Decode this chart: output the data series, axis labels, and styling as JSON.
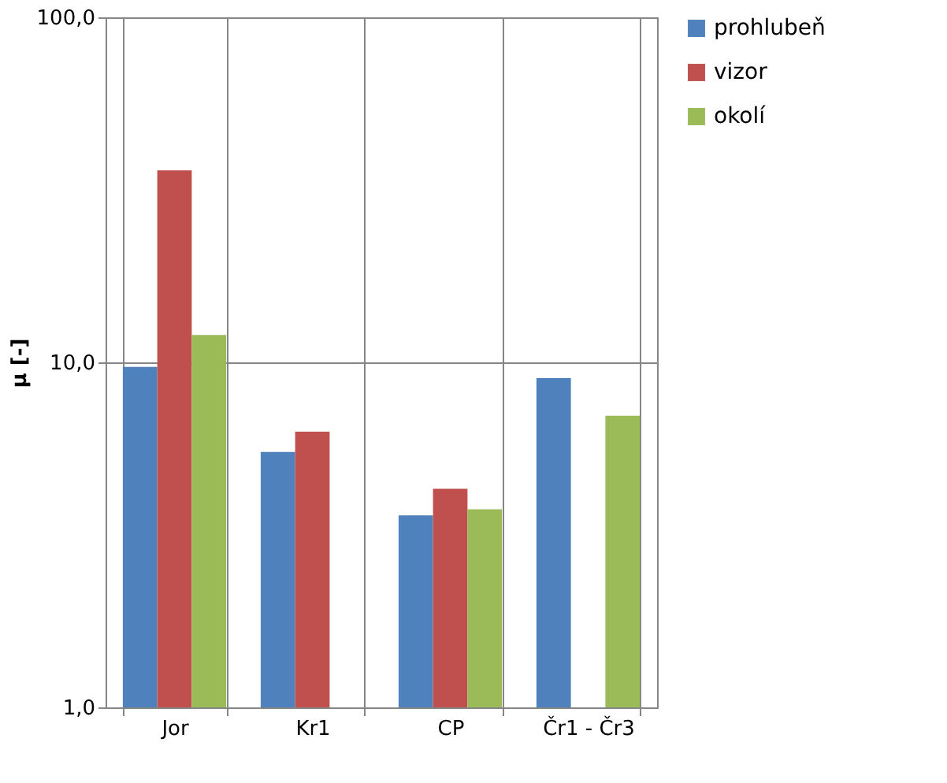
{
  "chart_data": {
    "type": "bar",
    "ylabel": "μ [-]",
    "categories": [
      "Jor",
      "Kr1",
      "CP",
      "Čr1 - Čr3"
    ],
    "series": [
      {
        "name": "prohlubeň",
        "color": "#4f81bd",
        "values": [
          9.7,
          5.5,
          3.6,
          9.0
        ]
      },
      {
        "name": "vizor",
        "color": "#c0504d",
        "values": [
          36,
          6.3,
          4.3,
          null
        ]
      },
      {
        "name": "okolí",
        "color": "#9bbb59",
        "values": [
          12,
          null,
          3.75,
          7.0
        ]
      }
    ],
    "log": true,
    "ylim": [
      1,
      100
    ],
    "yticks": [
      {
        "value": 1,
        "label": "1,0"
      },
      {
        "value": 10,
        "label": "10,0"
      },
      {
        "value": 100,
        "label": "100,0"
      }
    ],
    "grid": true,
    "legend": "top right"
  }
}
